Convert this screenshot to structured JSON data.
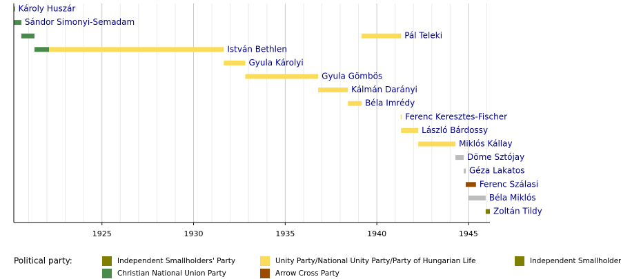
{
  "chart_data": {
    "type": "timeline",
    "xlim": [
      1920.19,
      1946.17
    ],
    "xticks": [
      1925,
      1930,
      1935,
      1940,
      1945
    ],
    "minor_xticks": [
      1921,
      1922,
      1923,
      1924,
      1926,
      1927,
      1928,
      1929,
      1931,
      1932,
      1933,
      1934,
      1936,
      1937,
      1938,
      1939,
      1941,
      1942,
      1943,
      1944,
      1946
    ],
    "rows": [
      {
        "name": "Károly Huszár",
        "bars": [
          {
            "start": 1919.9,
            "end": 1920.25,
            "color": "#4a8a4a"
          }
        ]
      },
      {
        "name": "Sándor Simonyi-Semadam",
        "bars": [
          {
            "start": 1920.19,
            "end": 1920.6,
            "color": "#4a8a4a"
          }
        ]
      },
      {
        "name": "Pál Teleki",
        "bars": [
          {
            "start": 1920.6,
            "end": 1921.32,
            "color": "#4a8a4a"
          },
          {
            "start": 1939.17,
            "end": 1941.32,
            "color": "#fbdb5a"
          }
        ]
      },
      {
        "name": "István Bethlen",
        "bars": [
          {
            "start": 1921.32,
            "end": 1922.11,
            "color": "#4a8a4a"
          },
          {
            "start": 1922.11,
            "end": 1931.65,
            "color": "#fbdb5a"
          }
        ]
      },
      {
        "name": "Gyula Károlyi",
        "bars": [
          {
            "start": 1931.65,
            "end": 1932.82,
            "color": "#fbdb5a"
          }
        ]
      },
      {
        "name": "Gyula Gömbös",
        "bars": [
          {
            "start": 1932.82,
            "end": 1936.8,
            "color": "#fbdb5a"
          }
        ]
      },
      {
        "name": "Kálmán Darányi",
        "bars": [
          {
            "start": 1936.8,
            "end": 1938.42,
            "color": "#fbdb5a"
          }
        ]
      },
      {
        "name": "Béla Imrédy",
        "bars": [
          {
            "start": 1938.42,
            "end": 1939.17,
            "color": "#fbdb5a"
          }
        ]
      },
      {
        "name": "Ferenc Keresztes-Fischer",
        "bars": [
          {
            "start": 1941.3,
            "end": 1941.36,
            "color": "#fbdb5a"
          }
        ]
      },
      {
        "name": "László Bárdossy",
        "bars": [
          {
            "start": 1941.32,
            "end": 1942.26,
            "color": "#fbdb5a"
          }
        ]
      },
      {
        "name": "Miklós Kállay",
        "bars": [
          {
            "start": 1942.26,
            "end": 1944.29,
            "color": "#fbdb5a"
          }
        ]
      },
      {
        "name": "Döme Sztójay",
        "bars": [
          {
            "start": 1944.29,
            "end": 1944.74,
            "color": "#bcbcbc"
          }
        ]
      },
      {
        "name": "Géza Lakatos",
        "bars": [
          {
            "start": 1944.74,
            "end": 1944.85,
            "color": "#bcbcbc"
          }
        ]
      },
      {
        "name": "Ferenc Szálasi",
        "bars": [
          {
            "start": 1944.85,
            "end": 1945.41,
            "color": "#994c00"
          }
        ]
      },
      {
        "name": "Béla Miklós",
        "bars": [
          {
            "start": 1945.0,
            "end": 1945.94,
            "color": "#bcbcbc"
          }
        ]
      },
      {
        "name": "Zoltán Tildy",
        "bars": [
          {
            "start": 1945.94,
            "end": 1946.17,
            "color": "#808000"
          }
        ]
      }
    ],
    "legend": {
      "title": "Political party:",
      "items": [
        {
          "name": "Independent Smallholders' Party",
          "color": "#808000"
        },
        {
          "name": "Christian National Union Party",
          "color": "#4a8a4a"
        },
        {
          "name": "Unity Party/National Unity Party/Party of Hungarian Life",
          "color": "#fbdb5a"
        },
        {
          "name": "Arrow Cross Party",
          "color": "#994c00"
        },
        {
          "name": "Independent Smallholders' Party",
          "color": "#808000"
        }
      ]
    }
  }
}
